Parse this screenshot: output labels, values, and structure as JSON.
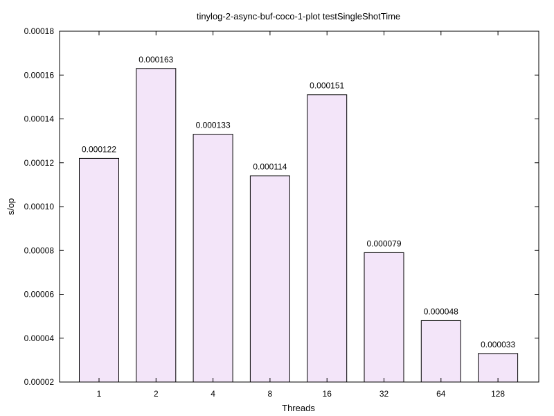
{
  "chart_data": {
    "type": "bar",
    "title": "tinylog-2-async-buf-coco-1-plot testSingleShotTime",
    "xlabel": "Threads",
    "ylabel": "s/op",
    "categories": [
      "1",
      "2",
      "4",
      "8",
      "16",
      "32",
      "64",
      "128"
    ],
    "values": [
      0.000122,
      0.000163,
      0.000133,
      0.000114,
      0.000151,
      7.9e-05,
      4.8e-05,
      3.3e-05
    ],
    "value_labels": [
      "0.000122",
      "0.000163",
      "0.000133",
      "0.000114",
      "0.000151",
      "0.000079",
      "0.000048",
      "0.000033"
    ],
    "ylim": [
      2e-05,
      0.00018
    ],
    "yticks": [
      2e-05,
      4e-05,
      6e-05,
      8e-05,
      0.0001,
      0.00012,
      0.00014,
      0.00016,
      0.00018
    ],
    "ytick_labels": [
      "0.00002",
      "0.00004",
      "0.00006",
      "0.00008",
      "0.00010",
      "0.00012",
      "0.00014",
      "0.00016",
      "0.00018"
    ],
    "grid": false,
    "bar_fill": "#f3e5f9",
    "bar_stroke": "#000000"
  }
}
